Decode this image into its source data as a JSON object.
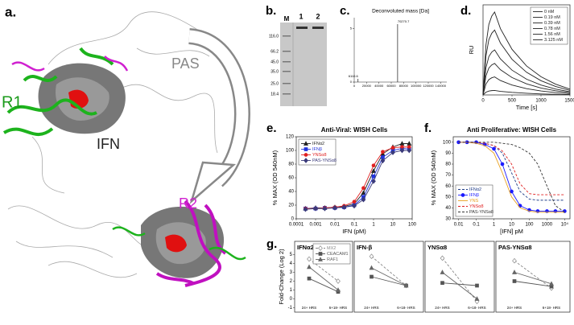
{
  "panel_labels": [
    "a.",
    "b.",
    "c.",
    "d.",
    "e.",
    "f.",
    "g."
  ],
  "structure": {
    "labels": [
      "R1",
      "PAS",
      "IFN",
      "R2"
    ]
  },
  "gel": {
    "lanes": [
      "M",
      "1",
      "2"
    ],
    "markers": [
      "116.0",
      "66.2",
      "45.0",
      "35.0",
      "25.0",
      "18.4"
    ]
  },
  "chart_data": [
    {
      "type": "stem",
      "title": "Deconvoluted mass [Da]",
      "x": [
        6110.6,
        70270.7
      ],
      "values": [
        0.3,
        5.4
      ],
      "xlim": [
        0,
        150000
      ],
      "xticks": [
        0,
        20000,
        40000,
        60000,
        80000,
        100000,
        120000,
        140000
      ],
      "ylim": [
        0,
        6
      ],
      "yticks": [
        0,
        5
      ],
      "color": "#333333"
    },
    {
      "type": "line",
      "ylabel": "RU",
      "xlabel": "Time [s]",
      "x": [
        0,
        50,
        100,
        150,
        200,
        300,
        500,
        750,
        1000,
        1250,
        1500
      ],
      "xlim": [
        0,
        1500
      ],
      "xticks": [
        0,
        500,
        1000,
        1500
      ],
      "ylim": [
        0,
        100
      ],
      "legend": "upper right",
      "series": [
        {
          "name": "0 nM",
          "color": "#222222",
          "values": [
            0,
            3,
            4.3,
            4.8,
            5,
            4,
            2.8,
            1.8,
            1.1,
            0.7,
            0.4
          ]
        },
        {
          "name": "0.19 nM",
          "color": "#222222",
          "values": [
            0,
            12,
            17,
            19,
            20,
            16,
            11,
            7,
            4.4,
            2.6,
            1.4
          ]
        },
        {
          "name": "0.39 nM",
          "color": "#222222",
          "values": [
            0,
            21,
            29.8,
            33.3,
            35,
            28,
            19.3,
            12.3,
            7.7,
            4.6,
            2.5
          ]
        },
        {
          "name": "0.78 nM",
          "color": "#222222",
          "values": [
            0,
            30,
            42.5,
            47.5,
            50,
            40,
            27.5,
            17.5,
            11,
            6.5,
            3.5
          ]
        },
        {
          "name": "1.56 nM",
          "color": "#222222",
          "values": [
            0,
            43.2,
            61.2,
            68.4,
            72,
            57.6,
            39.6,
            25.2,
            15.8,
            9.4,
            5
          ]
        },
        {
          "name": "3.125 nM",
          "color": "#222222",
          "values": [
            0,
            55.2,
            78.2,
            87.4,
            92,
            73.6,
            50.6,
            32.2,
            20.2,
            12,
            6.4
          ]
        }
      ]
    },
    {
      "type": "line",
      "title": "Anti-Viral: WISH Cells",
      "ylabel": "% MAX (OD 540nM)",
      "xlabel": "IFN (pM)",
      "xlog": true,
      "x": [
        0.0003,
        0.001,
        0.003,
        0.01,
        0.03,
        0.1,
        0.3,
        1,
        3,
        10,
        30,
        70
      ],
      "xlim": [
        0.0001,
        100
      ],
      "xticks": [
        0.0001,
        0.001,
        0.01,
        0.1,
        1,
        10,
        100
      ],
      "ylim": [
        0,
        120
      ],
      "yticks": [
        0,
        20,
        40,
        60,
        80,
        100,
        120
      ],
      "legend": "upper left",
      "series": [
        {
          "name": "IFNα2",
          "color": "#222222",
          "marker": "triangle",
          "values": [
            15,
            16,
            16,
            17,
            18,
            22,
            38,
            70,
            95,
            105,
            110,
            110
          ]
        },
        {
          "name": "IFNβ",
          "color": "#2233dd",
          "marker": "square",
          "values": [
            15,
            15,
            16,
            16,
            17,
            20,
            32,
            62,
            90,
            100,
            103,
            102
          ]
        },
        {
          "name": "YNSα8",
          "color": "#e02020",
          "marker": "circle",
          "values": [
            15,
            15,
            16,
            17,
            19,
            25,
            45,
            78,
            98,
            104,
            105,
            105
          ]
        },
        {
          "name": "PAS-YNSα8",
          "color": "#3a3a7a",
          "marker": "diamond",
          "values": [
            14,
            15,
            15,
            16,
            17,
            19,
            28,
            55,
            85,
            97,
            100,
            100
          ]
        }
      ]
    },
    {
      "type": "line",
      "title": "Anti Proliferative:  WISH Cells",
      "ylabel": "% MAX (OD 540nM)",
      "xlabel": "[IFN] pM",
      "xlog": true,
      "x": [
        0.01,
        0.03,
        0.1,
        0.3,
        1,
        3,
        10,
        30,
        100,
        300,
        1000,
        3000,
        10000
      ],
      "xlim": [
        0.005,
        20000
      ],
      "xticks": [
        0.01,
        0.1,
        1,
        10,
        100,
        1000,
        {
          "value": 10000,
          "label": "10⁴"
        }
      ],
      "ylim": [
        30,
        105
      ],
      "yticks": [
        30,
        40,
        50,
        60,
        70,
        80,
        90,
        100
      ],
      "legend": "lower left",
      "series": [
        {
          "name": "IFNα2",
          "color": "#1f3c88",
          "dash": true,
          "values": [
            100,
            100,
            100,
            99,
            97,
            90,
            72,
            55,
            48,
            47,
            47,
            47,
            47
          ]
        },
        {
          "name": "IFNβ",
          "color": "#1a1aff",
          "marker": "circle",
          "values": [
            100,
            100,
            100,
            98,
            94,
            80,
            55,
            42,
            38,
            37,
            37,
            37,
            37
          ]
        },
        {
          "name": "YNS",
          "color": "#e8a020",
          "values": [
            100,
            100,
            99,
            97,
            90,
            72,
            50,
            40,
            37,
            36,
            36,
            36,
            36
          ]
        },
        {
          "name": "YNSα8",
          "color": "#e02020",
          "dash": true,
          "values": [
            100,
            100,
            100,
            99,
            97,
            92,
            80,
            62,
            53,
            52,
            52,
            52,
            52
          ]
        },
        {
          "name": "PAS-YNSα8",
          "color": "#333333",
          "dash": true,
          "values": [
            100,
            100,
            100,
            100,
            100,
            99,
            98,
            95,
            90,
            80,
            60,
            42,
            36
          ]
        }
      ]
    },
    {
      "type": "line",
      "title": "IFNα2",
      "ylabel": "Fold-Change (Log 2)",
      "categories": [
        "24+ HRS",
        "6+18- HRS"
      ],
      "ylim": [
        -1.5,
        6.5
      ],
      "yticks": [
        -1,
        0,
        1,
        2,
        3,
        4,
        5
      ],
      "legend": "upper right",
      "series": [
        {
          "name": "MX2",
          "color": "#888888",
          "marker": "diamond-open",
          "dash": true,
          "values": [
            4.5,
            2.0
          ]
        },
        {
          "name": "CEACAM1",
          "color": "#555555",
          "marker": "square",
          "values": [
            2.3,
            0.8
          ]
        },
        {
          "name": "RAF1",
          "color": "#666666",
          "marker": "triangle",
          "values": [
            3.6,
            1.0
          ]
        }
      ]
    },
    {
      "type": "line",
      "title": "IFN-β",
      "categories": [
        "24+ HRS",
        "6+18- HRS"
      ],
      "ylim": [
        -1.5,
        6.5
      ],
      "series": [
        {
          "color": "#888888",
          "marker": "diamond-open",
          "dash": true,
          "values": [
            4.8,
            1.5
          ]
        },
        {
          "color": "#555555",
          "marker": "square",
          "values": [
            2.5,
            1.5
          ]
        },
        {
          "color": "#666666",
          "marker": "triangle",
          "values": [
            3.5,
            1.5
          ]
        }
      ]
    },
    {
      "type": "line",
      "title": "YNSα8",
      "categories": [
        "24+ HRS",
        "6+18- HRS"
      ],
      "ylim": [
        -1.5,
        6.5
      ],
      "series": [
        {
          "color": "#888888",
          "marker": "diamond-open",
          "dash": true,
          "values": [
            4.6,
            -0.3
          ]
        },
        {
          "color": "#555555",
          "marker": "square",
          "values": [
            1.8,
            1.5
          ]
        },
        {
          "color": "#666666",
          "marker": "triangle",
          "values": [
            3.0,
            0.0
          ]
        }
      ]
    },
    {
      "type": "line",
      "title": "PAS-YNSα8",
      "categories": [
        "24+ HRS",
        "6+18- HRS"
      ],
      "ylim": [
        -1.5,
        6.5
      ],
      "series": [
        {
          "color": "#888888",
          "marker": "diamond-open",
          "dash": true,
          "values": [
            4.3,
            1.2
          ]
        },
        {
          "color": "#555555",
          "marker": "square",
          "values": [
            2.0,
            1.4
          ]
        },
        {
          "color": "#666666",
          "marker": "triangle",
          "values": [
            3.0,
            1.7
          ]
        }
      ]
    }
  ]
}
